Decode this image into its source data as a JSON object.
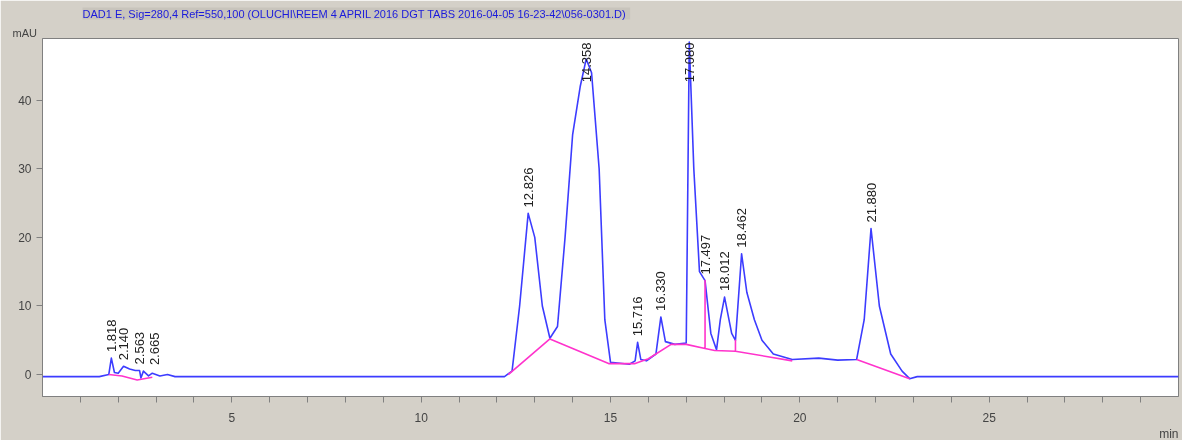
{
  "chart_data": {
    "type": "line",
    "title": "DAD1 E, Sig=280,4 Ref=550,100 (OLUCHI\\REEM 4 APRIL 2016 DGT TABS  2016-04-05 16-23-42\\056-0301.D)",
    "xlabel": "min",
    "ylabel": "mAU",
    "xlim": [
      0,
      30
    ],
    "ylim": [
      -3.2,
      49
    ],
    "xticks": [
      {
        "value": 1,
        "label": null
      },
      {
        "value": 2,
        "label": null
      },
      {
        "value": 3,
        "label": null
      },
      {
        "value": 4,
        "label": null
      },
      5,
      {
        "value": 6,
        "label": null
      },
      {
        "value": 7,
        "label": null
      },
      {
        "value": 8,
        "label": null
      },
      {
        "value": 9,
        "label": null
      },
      10,
      {
        "value": 11,
        "label": null
      },
      {
        "value": 12,
        "label": null
      },
      {
        "value": 13,
        "label": null
      },
      {
        "value": 14,
        "label": null
      },
      15,
      {
        "value": 16,
        "label": null
      },
      {
        "value": 17,
        "label": null
      },
      {
        "value": 18,
        "label": null
      },
      {
        "value": 19,
        "label": null
      },
      20,
      {
        "value": 21,
        "label": null
      },
      {
        "value": 22,
        "label": null
      },
      {
        "value": 23,
        "label": null
      },
      {
        "value": 24,
        "label": null
      },
      25,
      {
        "value": 26,
        "label": null
      },
      {
        "value": 27,
        "label": null
      },
      {
        "value": 28,
        "label": null
      },
      {
        "value": 29,
        "label": null
      }
    ],
    "yticks": [
      0,
      10,
      20,
      30,
      40
    ],
    "grid": false,
    "series": [
      {
        "color": "#3c3cff",
        "x": [
          0,
          1.5,
          1.75,
          1.818,
          1.9,
          2.0,
          2.14,
          2.3,
          2.45,
          2.563,
          2.6,
          2.665,
          2.8,
          2.9,
          3.1,
          3.3,
          3.5,
          12.2,
          12.4,
          12.6,
          12.826,
          13.0,
          13.2,
          13.4,
          13.6,
          13.8,
          14.0,
          14.2,
          14.358,
          14.5,
          14.7,
          14.85,
          15.0,
          15.5,
          15.65,
          15.716,
          15.8,
          15.95,
          16.2,
          16.33,
          16.45,
          16.7,
          17.0,
          17.08,
          17.2,
          17.35,
          17.497,
          17.65,
          17.8,
          17.9,
          18.012,
          18.2,
          18.3,
          18.462,
          18.6,
          18.8,
          19.0,
          19.3,
          19.8,
          20.5,
          21.0,
          21.5,
          21.7,
          21.88,
          22.1,
          22.4,
          22.7,
          22.9,
          23.1,
          24.0,
          30
        ],
        "values": [
          -0.3,
          -0.3,
          0,
          2.4,
          0.3,
          0.2,
          1.2,
          0.8,
          0.6,
          0.6,
          -0.5,
          0.5,
          -0.2,
          0.2,
          -0.2,
          0.0,
          -0.3,
          -0.3,
          0.5,
          10,
          23.5,
          20,
          10,
          5.3,
          7,
          20,
          35,
          42,
          46,
          44,
          30,
          8,
          1.8,
          1.5,
          2.0,
          4.7,
          2.2,
          2.0,
          3.0,
          8.4,
          4.8,
          4.4,
          4.6,
          48.5,
          30,
          15,
          13.7,
          6,
          3.6,
          8,
          11.3,
          6,
          5,
          17.6,
          12,
          8,
          5,
          3,
          2.2,
          2.4,
          2.1,
          2.2,
          8,
          21.3,
          10,
          3,
          0.5,
          -0.6,
          -0.3,
          -0.3,
          -0.3
        ]
      },
      {
        "color": "#ff33cc",
        "x": [
          1.75,
          2.1,
          2.5,
          2.9,
          3.0,
          12.3,
          13.4,
          14.95,
          15.65,
          16.0,
          16.6,
          17.0,
          17.497,
          17.497,
          17.497,
          17.75,
          18.3,
          18.3,
          18.3,
          19.8,
          20.5,
          21.5,
          22.9
        ],
        "values": [
          0.0,
          -0.2,
          -0.8,
          -0.4,
          null,
          0.0,
          5.2,
          1.6,
          1.6,
          2.3,
          4.4,
          4.4,
          3.8,
          13.7,
          3.8,
          3.5,
          3.4,
          5.0,
          3.4,
          2.0,
          null,
          2.2,
          -0.6
        ]
      }
    ],
    "annotations": [
      {
        "text": "1.818",
        "x": 1.818,
        "y": 2.4
      },
      {
        "text": "2.140",
        "x": 2.14,
        "y": 1.2
      },
      {
        "text": "2.563",
        "x": 2.563,
        "y": 0.6
      },
      {
        "text": "2.665",
        "x": 2.665,
        "y": 0.5
      },
      {
        "text": "12.826",
        "x": 12.826,
        "y": 23.5
      },
      {
        "text": "14.358",
        "x": 14.358,
        "y": 46
      },
      {
        "text": "15.716",
        "x": 15.716,
        "y": 4.7
      },
      {
        "text": "16.330",
        "x": 16.33,
        "y": 8.4
      },
      {
        "text": "17.080",
        "x": 17.08,
        "y": 48.5
      },
      {
        "text": "17.497",
        "x": 17.497,
        "y": 13.7
      },
      {
        "text": "18.012",
        "x": 18.012,
        "y": 11.3
      },
      {
        "text": "18.462",
        "x": 18.462,
        "y": 17.6
      },
      {
        "text": "21.880",
        "x": 21.88,
        "y": 21.3
      }
    ]
  }
}
